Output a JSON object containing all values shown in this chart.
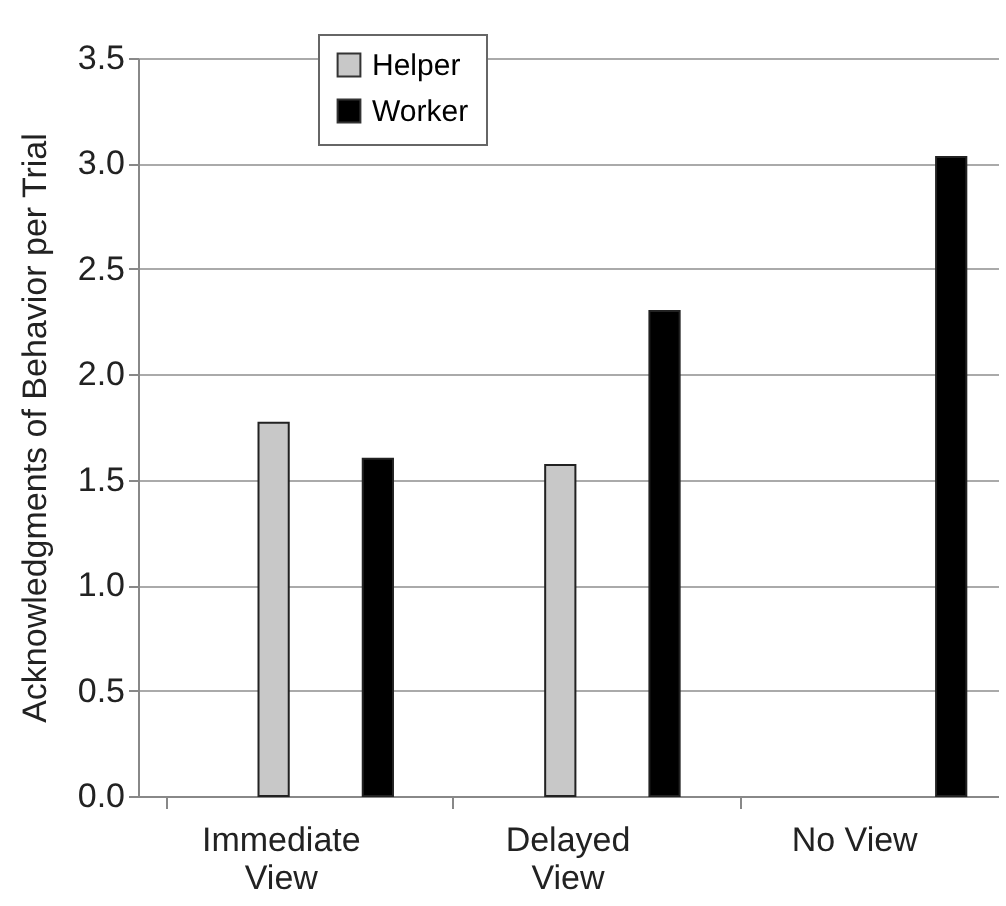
{
  "chart_data": {
    "type": "bar",
    "ylabel": "Acknowledgments of Behavior per Trial",
    "categories": [
      "Immediate View",
      "Delayed View",
      "No View"
    ],
    "series": [
      {
        "name": "Helper",
        "color": "#c8c8c8",
        "values": [
          1.77,
          1.57,
          null
        ]
      },
      {
        "name": "Worker",
        "color": "#000000",
        "values": [
          1.6,
          2.3,
          3.03
        ]
      }
    ],
    "ylim": [
      0,
      3.5
    ],
    "yticks": [
      {
        "value": 0,
        "label": "0.0"
      },
      {
        "value": 0.5,
        "label": "0.5"
      },
      {
        "value": 1,
        "label": "1.0"
      },
      {
        "value": 1.5,
        "label": "1.5"
      },
      {
        "value": 2,
        "label": "2.0"
      },
      {
        "value": 2.5,
        "label": "2.5"
      },
      {
        "value": 3,
        "label": "3.0"
      },
      {
        "value": 3.5,
        "label": "3.5"
      }
    ],
    "grid": "y",
    "legend": "top"
  }
}
